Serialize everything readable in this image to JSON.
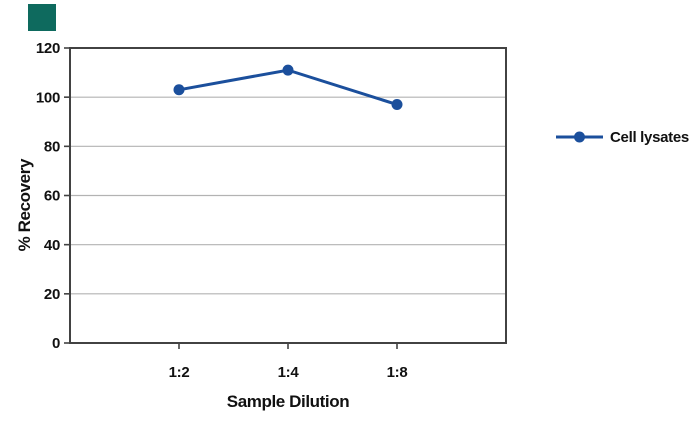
{
  "logo": {
    "color": "#0E6A5E"
  },
  "chart_data": {
    "type": "line",
    "categories": [
      "1:2",
      "1:4",
      "1:8"
    ],
    "series": [
      {
        "name": "Cell lysates",
        "values": [
          103,
          111,
          97
        ],
        "color": "#1B4F9C",
        "marker": "filled-circle"
      }
    ],
    "xlabel": "Sample Dilution",
    "ylabel": "% Recovery",
    "ylim": [
      0,
      120
    ],
    "yticks": [
      0,
      20,
      40,
      60,
      80,
      100,
      120
    ],
    "grid": "horizontal",
    "legend_position": "right",
    "axis_colors": {
      "frame": "#424242",
      "gridline": "#B3B3B3",
      "text": "#111111"
    }
  },
  "legend": {
    "items": [
      {
        "label": "Cell lysates",
        "color": "#1B4F9C"
      }
    ]
  }
}
